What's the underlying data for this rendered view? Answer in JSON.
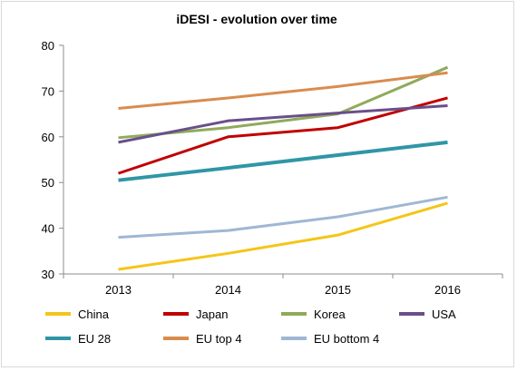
{
  "chart_data": {
    "type": "line",
    "title": "iDESI  - evolution over time",
    "xlabel": "",
    "ylabel": "",
    "categories": [
      "2013",
      "2014",
      "2015",
      "2016"
    ],
    "ylim": [
      30,
      80
    ],
    "yticks": [
      30,
      40,
      50,
      60,
      70,
      80
    ],
    "grid": false,
    "legend_position": "bottom",
    "series": [
      {
        "name": "China",
        "color": "#f5c518",
        "values": [
          31.0,
          34.5,
          38.5,
          45.5
        ]
      },
      {
        "name": "Japan",
        "color": "#c00000",
        "values": [
          52.0,
          60.0,
          62.0,
          68.5
        ]
      },
      {
        "name": "Korea",
        "color": "#8faa5c",
        "values": [
          59.8,
          62.0,
          65.0,
          75.2
        ]
      },
      {
        "name": "USA",
        "color": "#6a4f8a",
        "values": [
          58.8,
          63.5,
          65.2,
          66.8
        ]
      },
      {
        "name": "EU 28",
        "color": "#2f96a6",
        "values": [
          50.5,
          53.2,
          56.0,
          58.8
        ]
      },
      {
        "name": "EU top 4",
        "color": "#d98c4e",
        "values": [
          66.2,
          68.5,
          71.0,
          74.0
        ]
      },
      {
        "name": "EU bottom 4",
        "color": "#9fb7d3",
        "values": [
          38.0,
          39.5,
          42.5,
          46.8
        ]
      }
    ]
  }
}
